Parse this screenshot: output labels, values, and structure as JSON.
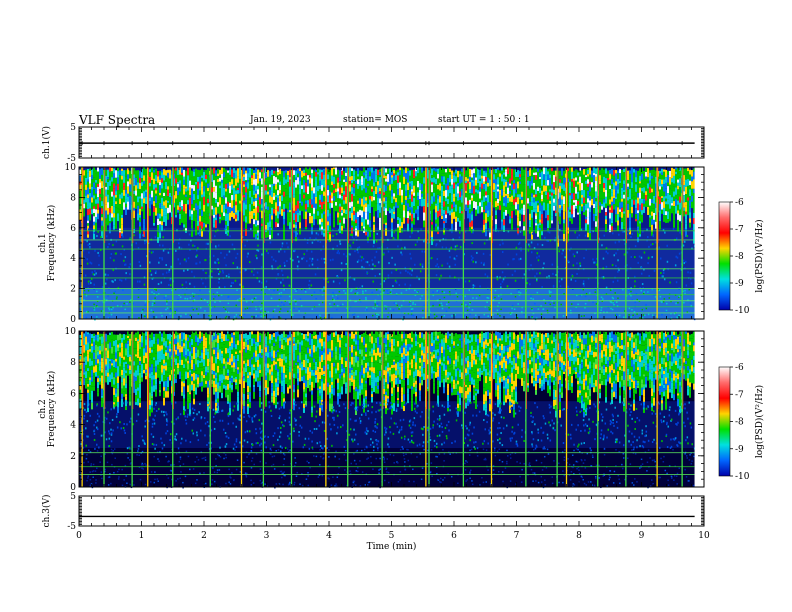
{
  "header": {
    "title": "VLF Spectra",
    "date": "Jan. 19, 2023",
    "station": "station= MOS",
    "start_ut": "start  UT =   1 : 50 : 1"
  },
  "chart_data": [
    {
      "type": "line",
      "name": "ch1-waveform",
      "ylabel": "ch.1(V)",
      "ylim": [
        -5,
        5
      ],
      "yticks": [
        "5",
        "-5"
      ],
      "x": [
        0,
        10
      ],
      "y": [
        -0.2,
        -0.2
      ]
    },
    {
      "type": "heatmap",
      "name": "ch1-spectrogram",
      "ylabel": "ch.1\nFrequency (kHz)",
      "ylim": [
        0,
        10
      ],
      "yticks": [
        "10",
        "8",
        "6",
        "4",
        "2",
        "0"
      ],
      "colorbar": {
        "label": "log(PSD)(V²/Hz)",
        "range": [
          -10,
          -6
        ],
        "ticks": [
          "-6",
          "-7",
          "-8",
          "-9",
          "-10"
        ],
        "colors": [
          "#ffffff",
          "#ff6b6b",
          "#ff0000",
          "#ffd400",
          "#00e000",
          "#00e0e0",
          "#0066ff",
          "#0000aa"
        ]
      },
      "features": {
        "strong_band_khz": [
          6,
          10
        ],
        "weak_band_khz": [
          2,
          6
        ],
        "low_band_khz": [
          0,
          2
        ],
        "narrowband_lines_khz": [
          0.4,
          0.8,
          1.2,
          1.6,
          2.0,
          2.7,
          3.3,
          4.6,
          5.2,
          5.8
        ],
        "spheric_times_min": [
          0.05,
          0.4,
          0.85,
          1.1,
          1.5,
          2.1,
          2.6,
          2.95,
          3.4,
          3.95,
          4.3,
          4.85,
          5.55,
          5.6,
          6.15,
          6.6,
          7.15,
          7.65,
          7.8,
          8.3,
          8.75,
          9.25,
          9.65
        ]
      }
    },
    {
      "type": "heatmap",
      "name": "ch2-spectrogram",
      "ylabel": "ch.2\nFrequency (kHz)",
      "ylim": [
        0,
        10
      ],
      "yticks": [
        "10",
        "8",
        "6",
        "4",
        "2",
        "0"
      ],
      "colorbar": {
        "label": "log(PSD)(V²/Hz)",
        "range": [
          -10,
          -6
        ],
        "ticks": [
          "-6",
          "-7",
          "-8",
          "-9",
          "-10"
        ],
        "colors": [
          "#ffffff",
          "#ff6b6b",
          "#ff0000",
          "#ffd400",
          "#00e000",
          "#00e0e0",
          "#0066ff",
          "#0000aa"
        ]
      },
      "features": {
        "strong_band_khz": [
          5.5,
          10
        ],
        "weak_band_khz": [
          2.5,
          5.5
        ],
        "low_band_khz": [
          0,
          2.5
        ],
        "narrowband_lines_khz": [
          0.8,
          1.3,
          2.2
        ],
        "spheric_times_min": [
          0.05,
          0.4,
          0.85,
          1.1,
          1.5,
          2.1,
          2.6,
          2.95,
          3.4,
          3.95,
          4.3,
          4.85,
          5.55,
          5.6,
          6.15,
          6.6,
          7.15,
          7.65,
          7.8,
          8.3,
          8.75,
          9.25,
          9.65
        ]
      }
    },
    {
      "type": "line",
      "name": "ch3-waveform",
      "ylabel": "ch.3(V)",
      "ylim": [
        -5,
        5
      ],
      "yticks": [
        "5",
        "-5"
      ],
      "x": [
        0,
        10
      ],
      "y": [
        -1.8,
        -1.8
      ]
    }
  ],
  "xaxis": {
    "label": "Time  (min)",
    "range": [
      0,
      10
    ],
    "data_end_min": 9.85,
    "ticks": [
      "0",
      "1",
      "2",
      "3",
      "4",
      "5",
      "6",
      "7",
      "8",
      "9",
      "10"
    ]
  }
}
